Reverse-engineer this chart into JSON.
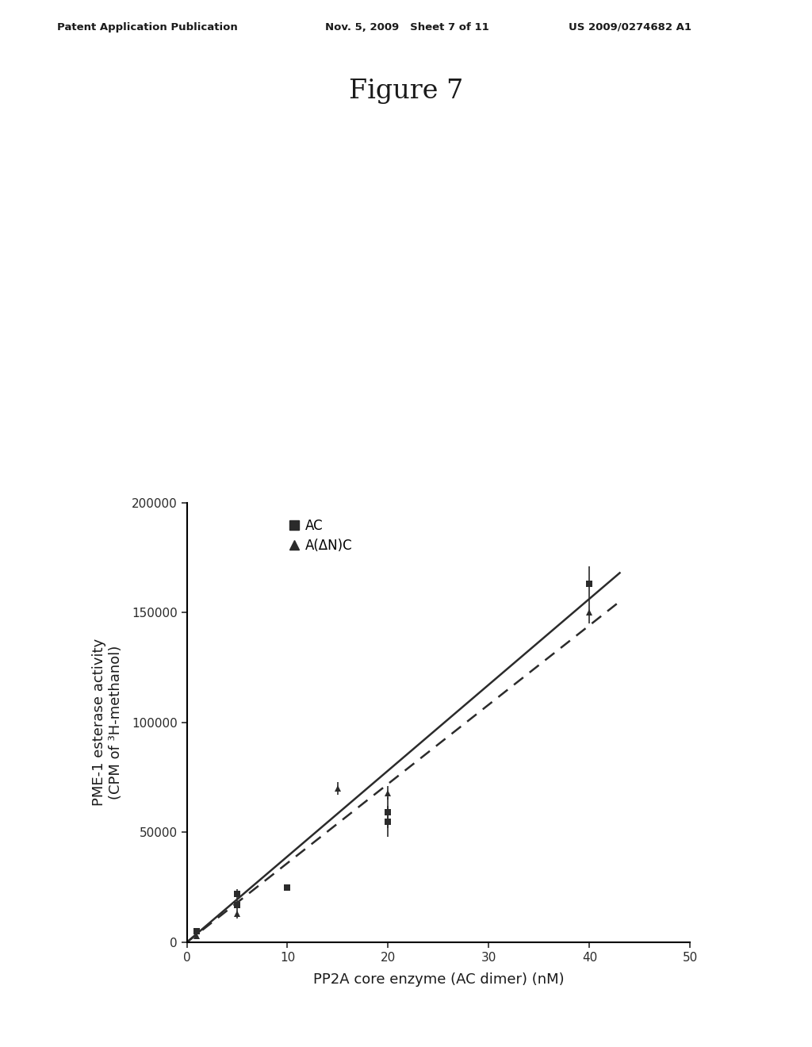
{
  "title": "Figure 7",
  "header_left": "Patent Application Publication",
  "header_mid": "Nov. 5, 2009   Sheet 7 of 11",
  "header_right": "US 2009/0274682 A1",
  "xlabel": "PP2A core enzyme (AC dimer) (nM)",
  "ylabel": "PME-1 esterase activity\n(CPM of ³H-methanol)",
  "xlim": [
    0,
    50
  ],
  "ylim": [
    0,
    200000
  ],
  "xticks": [
    0,
    10,
    20,
    30,
    40,
    50
  ],
  "yticks": [
    0,
    50000,
    100000,
    150000,
    200000
  ],
  "AC_x": [
    1,
    5,
    5,
    10,
    20,
    20,
    40
  ],
  "AC_y": [
    5000,
    17000,
    22000,
    25000,
    55000,
    59000,
    163000
  ],
  "AC_yerr": [
    0,
    2000,
    2000,
    0,
    7000,
    7000,
    8000
  ],
  "AC_fit_x": [
    0,
    43
  ],
  "AC_fit_y": [
    0,
    168000
  ],
  "ANC_x": [
    1,
    5,
    15,
    20,
    40
  ],
  "ANC_y": [
    3000,
    13000,
    70000,
    68000,
    150000
  ],
  "ANC_yerr": [
    0,
    2000,
    3000,
    3000,
    5000
  ],
  "ANC_fit_x": [
    0,
    43
  ],
  "ANC_fit_y": [
    0,
    155000
  ],
  "marker_color": "#2b2b2b",
  "line_color": "#2b2b2b",
  "background_color": "#ffffff"
}
